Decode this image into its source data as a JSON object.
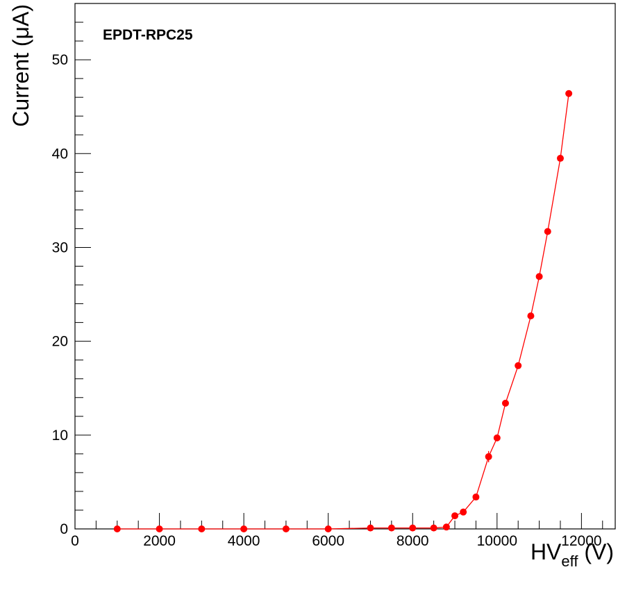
{
  "chart_data": {
    "type": "scatter",
    "title": "EPDT-RPC25",
    "xlabel": {
      "main": "HV",
      "sub": "eff",
      "unit": " (V)"
    },
    "ylabel": "Current (μA)",
    "xlim": [
      0,
      12800
    ],
    "ylim": [
      0,
      56
    ],
    "x_ticks": [
      0,
      2000,
      4000,
      6000,
      8000,
      10000,
      12000
    ],
    "x_tick_labels": [
      "0",
      "2000",
      "4000",
      "6000",
      "8000",
      "10000",
      "12000"
    ],
    "y_ticks": [
      0,
      10,
      20,
      30,
      40,
      50
    ],
    "y_tick_labels": [
      "0",
      "10",
      "20",
      "30",
      "40",
      "50"
    ],
    "grid": false,
    "marker_color": "#ff0000",
    "series": [
      {
        "x": [
          1000,
          2000,
          3000,
          4000,
          5000,
          6000,
          7000,
          7500,
          8000,
          8500,
          8800,
          9000,
          9200,
          9500,
          9800,
          10000,
          10200,
          10500,
          10800,
          11000,
          11200,
          11500,
          11700
        ],
        "y": [
          0.0,
          0.0,
          0.0,
          0.0,
          0.0,
          0.0,
          0.1,
          0.1,
          0.1,
          0.1,
          0.2,
          1.4,
          1.8,
          3.4,
          7.7,
          9.7,
          13.4,
          17.4,
          22.7,
          26.9,
          31.7,
          39.5,
          46.4
        ],
        "yerr": [
          0,
          0,
          0,
          0,
          0,
          0,
          0,
          0,
          0,
          0,
          0,
          0,
          0,
          0,
          0.6,
          0,
          0,
          0,
          0,
          0,
          0,
          0,
          0
        ]
      }
    ]
  }
}
